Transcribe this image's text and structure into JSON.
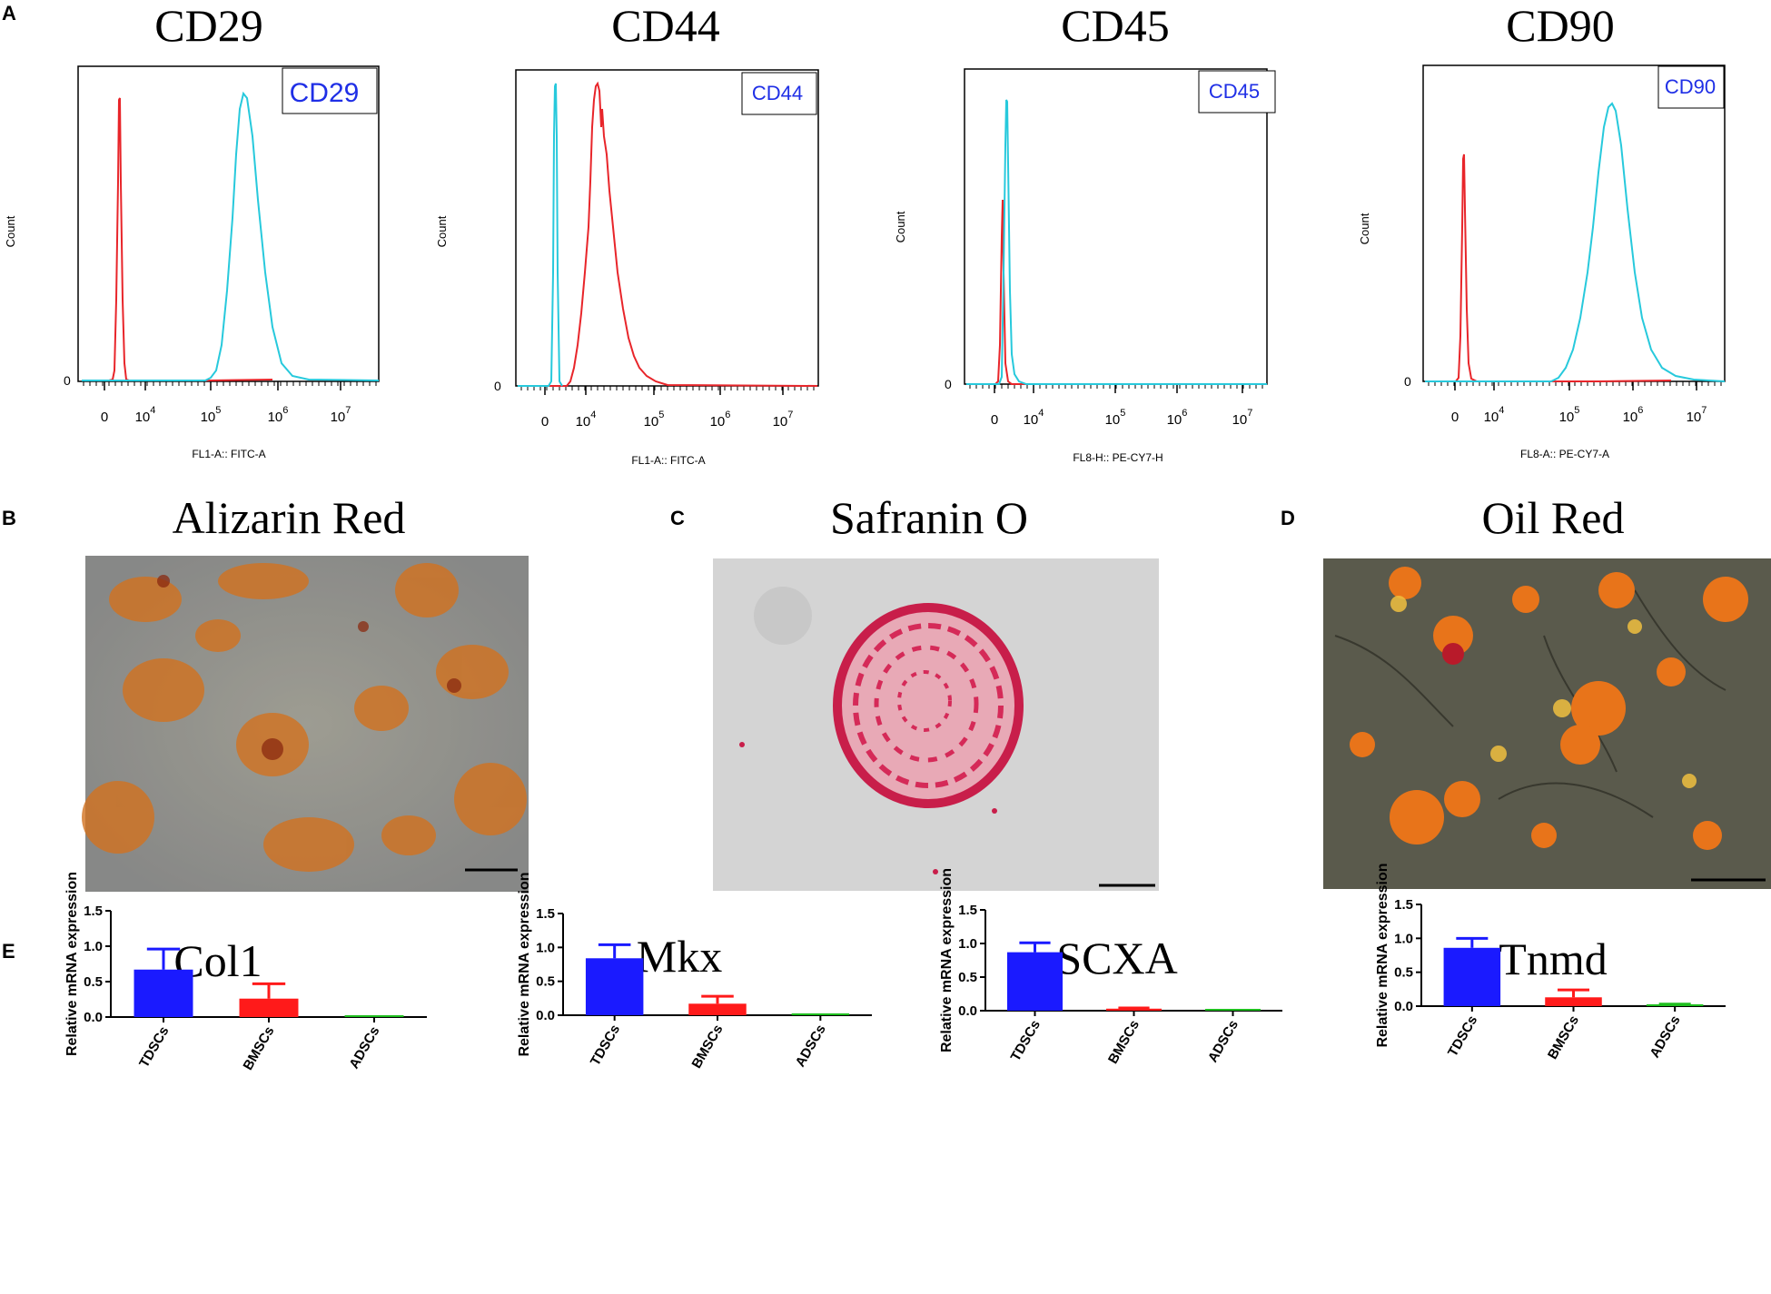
{
  "panels": {
    "A": {
      "letter": "A"
    },
    "B": {
      "letter": "B",
      "title": "Alizarin Red"
    },
    "C": {
      "letter": "C",
      "title": "Safranin O"
    },
    "D": {
      "letter": "D",
      "title": "Oil Red"
    },
    "E": {
      "letter": "E"
    }
  },
  "flow": [
    {
      "title": "CD29",
      "legend": "CD29",
      "ylabel": "Count",
      "xlabel": "FL1-A:: FITC-A",
      "zero": "0",
      "ticks": [
        {
          "base": "0",
          "exp": ""
        },
        {
          "base": "10",
          "exp": "4"
        },
        {
          "base": "10",
          "exp": "5"
        },
        {
          "base": "10",
          "exp": "6"
        },
        {
          "base": "10",
          "exp": "7"
        }
      ]
    },
    {
      "title": "CD44",
      "legend": "CD44",
      "ylabel": "Count",
      "xlabel": "FL1-A:: FITC-A",
      "zero": "0",
      "ticks": [
        {
          "base": "0",
          "exp": ""
        },
        {
          "base": "10",
          "exp": "4"
        },
        {
          "base": "10",
          "exp": "5"
        },
        {
          "base": "10",
          "exp": "6"
        },
        {
          "base": "10",
          "exp": "7"
        }
      ]
    },
    {
      "title": "CD45",
      "legend": "CD45",
      "ylabel": "Count",
      "xlabel": "FL8-H:: PE-CY7-H",
      "zero": "0",
      "ticks": [
        {
          "base": "0",
          "exp": ""
        },
        {
          "base": "10",
          "exp": "4"
        },
        {
          "base": "10",
          "exp": "5"
        },
        {
          "base": "10",
          "exp": "6"
        },
        {
          "base": "10",
          "exp": "7"
        }
      ]
    },
    {
      "title": "CD90",
      "legend": "CD90",
      "ylabel": "Count",
      "xlabel": "FL8-A:: PE-CY7-A",
      "zero": "0",
      "ticks": [
        {
          "base": "0",
          "exp": ""
        },
        {
          "base": "10",
          "exp": "4"
        },
        {
          "base": "10",
          "exp": "5"
        },
        {
          "base": "10",
          "exp": "6"
        },
        {
          "base": "10",
          "exp": "7"
        }
      ]
    }
  ],
  "colors": {
    "control": "#e8252a",
    "marker": "#27c9dc",
    "legend_text": "#1f2fe6",
    "tdsc": "#1a1aff",
    "bmsc": "#ff1a1a",
    "adsc": "#1fbf1f"
  },
  "chart_data": [
    {
      "type": "bar",
      "title": "Col1",
      "xlabel": "",
      "ylabel": "Relative mRNA expression",
      "ylim": [
        0,
        1.5
      ],
      "yticks": [
        "0.0",
        "0.5",
        "1.0",
        "1.5"
      ],
      "categories": [
        "TDSCs",
        "BMSCs",
        "ADSCs"
      ],
      "values": [
        0.67,
        0.26,
        0.01
      ],
      "errors": [
        0.29,
        0.21,
        0.0
      ]
    },
    {
      "type": "bar",
      "title": "Mkx",
      "xlabel": "",
      "ylabel": "Relative mRNA expression",
      "ylim": [
        0,
        1.5
      ],
      "yticks": [
        "0.0",
        "0.5",
        "1.0",
        "1.5"
      ],
      "categories": [
        "TDSCs",
        "BMSCs",
        "ADSCs"
      ],
      "values": [
        0.84,
        0.17,
        0.0
      ],
      "errors": [
        0.2,
        0.11,
        0.0
      ]
    },
    {
      "type": "bar",
      "title": "SCXA",
      "xlabel": "",
      "ylabel": "Relative mRNA expression",
      "ylim": [
        0,
        1.5
      ],
      "yticks": [
        "0.0",
        "0.5",
        "1.0",
        "1.5"
      ],
      "categories": [
        "TDSCs",
        "BMSCs",
        "ADSCs"
      ],
      "values": [
        0.87,
        0.03,
        0.01
      ],
      "errors": [
        0.14,
        0.01,
        0.0
      ]
    },
    {
      "type": "bar",
      "title": "Tnmd",
      "xlabel": "",
      "ylabel": "Relative mRNA expression",
      "ylim": [
        0,
        1.5
      ],
      "yticks": [
        "0.0",
        "0.5",
        "1.0",
        "1.5"
      ],
      "categories": [
        "TDSCs",
        "BMSCs",
        "ADSCs"
      ],
      "values": [
        0.86,
        0.13,
        0.02
      ],
      "errors": [
        0.14,
        0.11,
        0.01
      ]
    }
  ]
}
